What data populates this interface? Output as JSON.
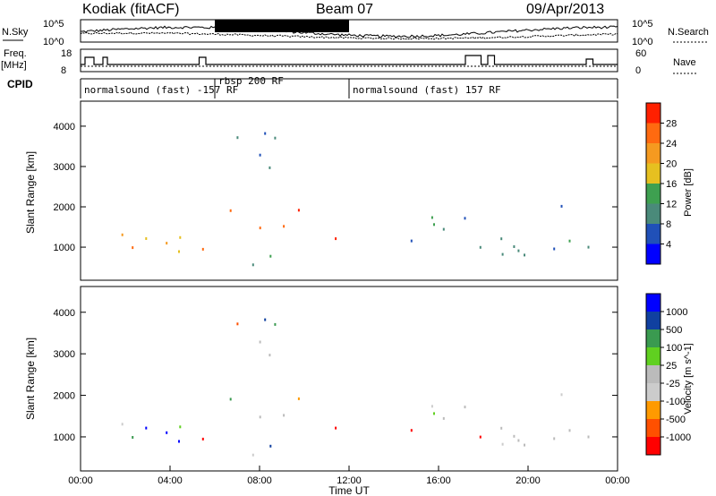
{
  "header": {
    "station": "Kodiak (fitACF)",
    "beam": "Beam 07",
    "date": "09/Apr/2013"
  },
  "summary_labels": {
    "nsky": "N.Sky",
    "nsearch": "N.Search",
    "freq": "Freq.",
    "freq_unit": "[MHz]",
    "nave": "Nave",
    "cpid": "CPID",
    "noise_ticks": [
      "10^5",
      "10^0"
    ],
    "noise_ticks_right": [
      "10^5",
      "10^0"
    ],
    "freq_ticks": [
      "18",
      "8"
    ],
    "nave_ticks": [
      "60",
      "0"
    ]
  },
  "cpid_segments": [
    {
      "label": "normalsound (fast) -157 RF",
      "start": 0,
      "end": 6
    },
    {
      "label": "rbsp 200 RF",
      "start": 6,
      "end": 12
    },
    {
      "label": "normalsound (fast) 157 RF",
      "start": 12,
      "end": 24
    }
  ],
  "colors": {
    "power": [
      "#0000ff",
      "#2050b8",
      "#4a8a7a",
      "#3ea050",
      "#e6c020",
      "#f59a20",
      "#ff6a10",
      "#ff2000"
    ],
    "velocity": [
      "#ff0000",
      "#ff5000",
      "#ff9a00",
      "#cccccc",
      "#bbbbbb",
      "#60d020",
      "#3a9a50",
      "#1040a0",
      "#0000ff"
    ]
  },
  "chart_data": [
    {
      "type": "heatmap",
      "title": "",
      "ylabel": "Slant Range [km]",
      "xlabel": "",
      "xlim": [
        0,
        24
      ],
      "ylim": [
        180,
        4620
      ],
      "y_ticks": [
        1000,
        2000,
        3000,
        4000
      ],
      "colorbar_label": "Power [dB]",
      "colorbar_ticks": [
        "4",
        "8",
        "12",
        "16",
        "20",
        "24",
        "28"
      ],
      "colorbar_range": [
        0,
        30
      ],
      "scatter_bands": [
        {
          "t0": 0.3,
          "t1": 5.9,
          "r0": 700,
          "r1": 1800,
          "level": 20
        },
        {
          "t0": 6.0,
          "t1": 11.8,
          "r0": 1200,
          "r1": 2000,
          "level": 26
        },
        {
          "t0": 6.0,
          "t1": 10.5,
          "r0": 500,
          "r1": 900,
          "level": 14
        },
        {
          "t0": 6.2,
          "t1": 9.0,
          "r0": 2500,
          "r1": 4200,
          "level": 8
        },
        {
          "t0": 14.0,
          "t1": 23.8,
          "r0": 800,
          "r1": 2200,
          "level": 10
        }
      ]
    },
    {
      "type": "heatmap",
      "title": "",
      "ylabel": "Slant Range [km]",
      "xlabel": "Time UT",
      "xlim": [
        0,
        24
      ],
      "ylim": [
        180,
        4620
      ],
      "y_ticks": [
        1000,
        2000,
        3000,
        4000
      ],
      "x_ticks": [
        "00:00",
        "04:00",
        "08:00",
        "12:00",
        "16:00",
        "20:00",
        "00:00"
      ],
      "colorbar_label": "Velocity [m s^-1]",
      "colorbar_ticks": [
        "1000",
        "500",
        "100",
        "25",
        "-25",
        "-100",
        "-500",
        "-1000"
      ],
      "colorbar_range": [
        -1200,
        1200
      ]
    }
  ]
}
